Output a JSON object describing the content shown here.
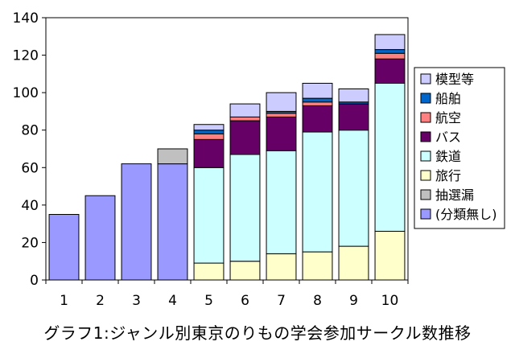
{
  "chart_data": {
    "type": "bar",
    "stacked": true,
    "title": "グラフ1:ジャンル別東京のりもの学会参加サークル数推移",
    "xlabel": "",
    "ylabel": "",
    "categories": [
      "1",
      "2",
      "3",
      "4",
      "5",
      "6",
      "7",
      "8",
      "9",
      "10"
    ],
    "ylim": [
      0,
      140
    ],
    "yticks": [
      "0",
      "20",
      "40",
      "60",
      "80",
      "100",
      "120",
      "140"
    ],
    "grid": false,
    "legend_position": "right",
    "series": [
      {
        "name": "(分類無し)",
        "color": "#9999ff",
        "values": [
          35,
          45,
          62,
          62,
          0,
          0,
          0,
          0,
          0,
          0
        ]
      },
      {
        "name": "抽選漏",
        "color": "#c0c0c0",
        "values": [
          0,
          0,
          0,
          8,
          0,
          0,
          0,
          0,
          0,
          0
        ]
      },
      {
        "name": "旅行",
        "color": "#ffffcc",
        "values": [
          0,
          0,
          0,
          0,
          9,
          10,
          14,
          15,
          18,
          26
        ]
      },
      {
        "name": "鉄道",
        "color": "#ccffff",
        "values": [
          0,
          0,
          0,
          0,
          51,
          57,
          55,
          64,
          62,
          79
        ]
      },
      {
        "name": "バス",
        "color": "#660066",
        "values": [
          0,
          0,
          0,
          0,
          15,
          18,
          18,
          14,
          14,
          13
        ]
      },
      {
        "name": "航空",
        "color": "#ff8080",
        "values": [
          0,
          0,
          0,
          0,
          3,
          2,
          2,
          2,
          0,
          3
        ]
      },
      {
        "name": "船舶",
        "color": "#0066cc",
        "values": [
          0,
          0,
          0,
          0,
          2,
          0,
          1,
          2,
          1,
          2
        ]
      },
      {
        "name": "模型等",
        "color": "#ccccff",
        "values": [
          0,
          0,
          0,
          0,
          3,
          7,
          10,
          8,
          7,
          8
        ]
      }
    ],
    "legend_order": [
      "模型等",
      "船舶",
      "航空",
      "バス",
      "鉄道",
      "旅行",
      "抽選漏",
      "(分類無し)"
    ]
  }
}
